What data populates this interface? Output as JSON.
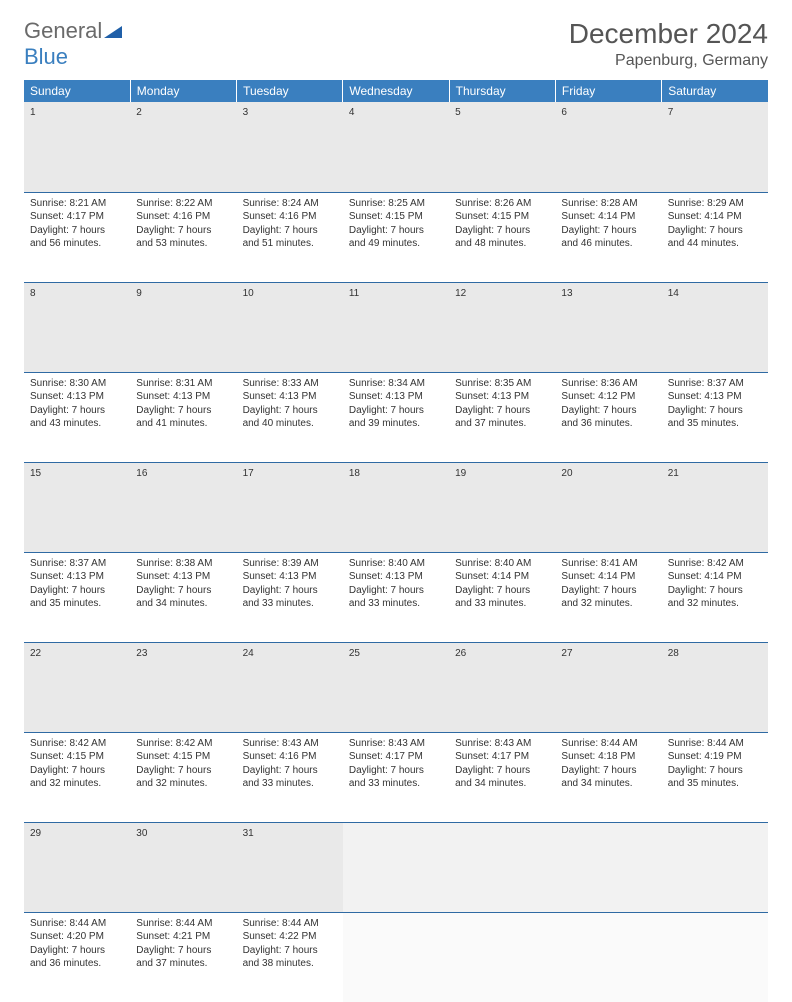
{
  "logo": {
    "part1": "General",
    "part2": "Blue"
  },
  "title": "December 2024",
  "location": "Papenburg, Germany",
  "colors": {
    "header_bg": "#3a7fbf",
    "header_text": "#ffffff",
    "daynum_bg": "#e9e9e9",
    "row_divider": "#2f6aa3",
    "text": "#333333",
    "logo_gray": "#6a6a6a",
    "logo_blue": "#3a7fbf"
  },
  "typography": {
    "title_fontsize": 28,
    "location_fontsize": 16,
    "dayheader_fontsize": 12,
    "cell_fontsize": 10
  },
  "day_headers": [
    "Sunday",
    "Monday",
    "Tuesday",
    "Wednesday",
    "Thursday",
    "Friday",
    "Saturday"
  ],
  "weeks": [
    [
      {
        "num": "1",
        "sunrise": "Sunrise: 8:21 AM",
        "sunset": "Sunset: 4:17 PM",
        "daylight1": "Daylight: 7 hours",
        "daylight2": "and 56 minutes."
      },
      {
        "num": "2",
        "sunrise": "Sunrise: 8:22 AM",
        "sunset": "Sunset: 4:16 PM",
        "daylight1": "Daylight: 7 hours",
        "daylight2": "and 53 minutes."
      },
      {
        "num": "3",
        "sunrise": "Sunrise: 8:24 AM",
        "sunset": "Sunset: 4:16 PM",
        "daylight1": "Daylight: 7 hours",
        "daylight2": "and 51 minutes."
      },
      {
        "num": "4",
        "sunrise": "Sunrise: 8:25 AM",
        "sunset": "Sunset: 4:15 PM",
        "daylight1": "Daylight: 7 hours",
        "daylight2": "and 49 minutes."
      },
      {
        "num": "5",
        "sunrise": "Sunrise: 8:26 AM",
        "sunset": "Sunset: 4:15 PM",
        "daylight1": "Daylight: 7 hours",
        "daylight2": "and 48 minutes."
      },
      {
        "num": "6",
        "sunrise": "Sunrise: 8:28 AM",
        "sunset": "Sunset: 4:14 PM",
        "daylight1": "Daylight: 7 hours",
        "daylight2": "and 46 minutes."
      },
      {
        "num": "7",
        "sunrise": "Sunrise: 8:29 AM",
        "sunset": "Sunset: 4:14 PM",
        "daylight1": "Daylight: 7 hours",
        "daylight2": "and 44 minutes."
      }
    ],
    [
      {
        "num": "8",
        "sunrise": "Sunrise: 8:30 AM",
        "sunset": "Sunset: 4:13 PM",
        "daylight1": "Daylight: 7 hours",
        "daylight2": "and 43 minutes."
      },
      {
        "num": "9",
        "sunrise": "Sunrise: 8:31 AM",
        "sunset": "Sunset: 4:13 PM",
        "daylight1": "Daylight: 7 hours",
        "daylight2": "and 41 minutes."
      },
      {
        "num": "10",
        "sunrise": "Sunrise: 8:33 AM",
        "sunset": "Sunset: 4:13 PM",
        "daylight1": "Daylight: 7 hours",
        "daylight2": "and 40 minutes."
      },
      {
        "num": "11",
        "sunrise": "Sunrise: 8:34 AM",
        "sunset": "Sunset: 4:13 PM",
        "daylight1": "Daylight: 7 hours",
        "daylight2": "and 39 minutes."
      },
      {
        "num": "12",
        "sunrise": "Sunrise: 8:35 AM",
        "sunset": "Sunset: 4:13 PM",
        "daylight1": "Daylight: 7 hours",
        "daylight2": "and 37 minutes."
      },
      {
        "num": "13",
        "sunrise": "Sunrise: 8:36 AM",
        "sunset": "Sunset: 4:12 PM",
        "daylight1": "Daylight: 7 hours",
        "daylight2": "and 36 minutes."
      },
      {
        "num": "14",
        "sunrise": "Sunrise: 8:37 AM",
        "sunset": "Sunset: 4:13 PM",
        "daylight1": "Daylight: 7 hours",
        "daylight2": "and 35 minutes."
      }
    ],
    [
      {
        "num": "15",
        "sunrise": "Sunrise: 8:37 AM",
        "sunset": "Sunset: 4:13 PM",
        "daylight1": "Daylight: 7 hours",
        "daylight2": "and 35 minutes."
      },
      {
        "num": "16",
        "sunrise": "Sunrise: 8:38 AM",
        "sunset": "Sunset: 4:13 PM",
        "daylight1": "Daylight: 7 hours",
        "daylight2": "and 34 minutes."
      },
      {
        "num": "17",
        "sunrise": "Sunrise: 8:39 AM",
        "sunset": "Sunset: 4:13 PM",
        "daylight1": "Daylight: 7 hours",
        "daylight2": "and 33 minutes."
      },
      {
        "num": "18",
        "sunrise": "Sunrise: 8:40 AM",
        "sunset": "Sunset: 4:13 PM",
        "daylight1": "Daylight: 7 hours",
        "daylight2": "and 33 minutes."
      },
      {
        "num": "19",
        "sunrise": "Sunrise: 8:40 AM",
        "sunset": "Sunset: 4:14 PM",
        "daylight1": "Daylight: 7 hours",
        "daylight2": "and 33 minutes."
      },
      {
        "num": "20",
        "sunrise": "Sunrise: 8:41 AM",
        "sunset": "Sunset: 4:14 PM",
        "daylight1": "Daylight: 7 hours",
        "daylight2": "and 32 minutes."
      },
      {
        "num": "21",
        "sunrise": "Sunrise: 8:42 AM",
        "sunset": "Sunset: 4:14 PM",
        "daylight1": "Daylight: 7 hours",
        "daylight2": "and 32 minutes."
      }
    ],
    [
      {
        "num": "22",
        "sunrise": "Sunrise: 8:42 AM",
        "sunset": "Sunset: 4:15 PM",
        "daylight1": "Daylight: 7 hours",
        "daylight2": "and 32 minutes."
      },
      {
        "num": "23",
        "sunrise": "Sunrise: 8:42 AM",
        "sunset": "Sunset: 4:15 PM",
        "daylight1": "Daylight: 7 hours",
        "daylight2": "and 32 minutes."
      },
      {
        "num": "24",
        "sunrise": "Sunrise: 8:43 AM",
        "sunset": "Sunset: 4:16 PM",
        "daylight1": "Daylight: 7 hours",
        "daylight2": "and 33 minutes."
      },
      {
        "num": "25",
        "sunrise": "Sunrise: 8:43 AM",
        "sunset": "Sunset: 4:17 PM",
        "daylight1": "Daylight: 7 hours",
        "daylight2": "and 33 minutes."
      },
      {
        "num": "26",
        "sunrise": "Sunrise: 8:43 AM",
        "sunset": "Sunset: 4:17 PM",
        "daylight1": "Daylight: 7 hours",
        "daylight2": "and 34 minutes."
      },
      {
        "num": "27",
        "sunrise": "Sunrise: 8:44 AM",
        "sunset": "Sunset: 4:18 PM",
        "daylight1": "Daylight: 7 hours",
        "daylight2": "and 34 minutes."
      },
      {
        "num": "28",
        "sunrise": "Sunrise: 8:44 AM",
        "sunset": "Sunset: 4:19 PM",
        "daylight1": "Daylight: 7 hours",
        "daylight2": "and 35 minutes."
      }
    ],
    [
      {
        "num": "29",
        "sunrise": "Sunrise: 8:44 AM",
        "sunset": "Sunset: 4:20 PM",
        "daylight1": "Daylight: 7 hours",
        "daylight2": "and 36 minutes."
      },
      {
        "num": "30",
        "sunrise": "Sunrise: 8:44 AM",
        "sunset": "Sunset: 4:21 PM",
        "daylight1": "Daylight: 7 hours",
        "daylight2": "and 37 minutes."
      },
      {
        "num": "31",
        "sunrise": "Sunrise: 8:44 AM",
        "sunset": "Sunset: 4:22 PM",
        "daylight1": "Daylight: 7 hours",
        "daylight2": "and 38 minutes."
      },
      null,
      null,
      null,
      null
    ]
  ]
}
